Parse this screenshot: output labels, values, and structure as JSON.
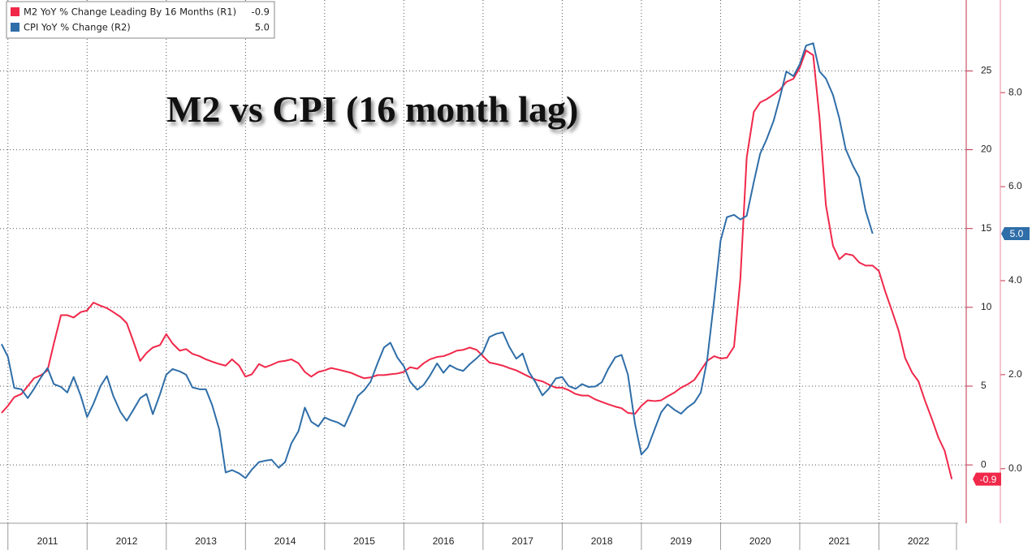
{
  "chart_data": {
    "type": "line",
    "title": "M2 vs CPI (16 month lag)",
    "x": [
      2010.92,
      2011,
      2011.08,
      2011.17,
      2011.25,
      2011.33,
      2011.42,
      2011.5,
      2011.58,
      2011.67,
      2011.75,
      2011.83,
      2011.92,
      2012,
      2012.08,
      2012.17,
      2012.25,
      2012.33,
      2012.42,
      2012.5,
      2012.58,
      2012.67,
      2012.75,
      2012.83,
      2012.92,
      2013,
      2013.08,
      2013.17,
      2013.25,
      2013.33,
      2013.42,
      2013.5,
      2013.58,
      2013.67,
      2013.75,
      2013.83,
      2013.92,
      2014,
      2014.08,
      2014.17,
      2014.25,
      2014.33,
      2014.42,
      2014.5,
      2014.58,
      2014.67,
      2014.75,
      2014.83,
      2014.92,
      2015,
      2015.08,
      2015.17,
      2015.25,
      2015.33,
      2015.42,
      2015.5,
      2015.58,
      2015.67,
      2015.75,
      2015.83,
      2015.92,
      2016,
      2016.08,
      2016.17,
      2016.25,
      2016.33,
      2016.42,
      2016.5,
      2016.58,
      2016.67,
      2016.75,
      2016.83,
      2016.92,
      2017,
      2017.08,
      2017.17,
      2017.25,
      2017.33,
      2017.42,
      2017.5,
      2017.58,
      2017.67,
      2017.75,
      2017.83,
      2017.92,
      2018,
      2018.08,
      2018.17,
      2018.25,
      2018.33,
      2018.42,
      2018.5,
      2018.58,
      2018.67,
      2018.75,
      2018.83,
      2018.92,
      2019,
      2019.08,
      2019.17,
      2019.25,
      2019.33,
      2019.42,
      2019.5,
      2019.58,
      2019.67,
      2019.75,
      2019.83,
      2019.92,
      2020,
      2020.08,
      2020.17,
      2020.25,
      2020.33,
      2020.42,
      2020.5,
      2020.58,
      2020.67,
      2020.75,
      2020.83,
      2020.92,
      2021,
      2021.08,
      2021.17,
      2021.25,
      2021.33,
      2021.42,
      2021.5,
      2021.58,
      2021.67,
      2021.75,
      2021.83,
      2021.92,
      2022,
      2022.08,
      2022.17,
      2022.25,
      2022.33,
      2022.42,
      2022.5,
      2022.58,
      2022.67,
      2022.75,
      2022.83,
      2022.92
    ],
    "series": [
      {
        "name": "M2 YoY % Change Leading By 16 Months (R1)",
        "color": "#f0284a",
        "axis": "y",
        "values": [
          3.3,
          3.75,
          4.3,
          4.5,
          5.0,
          5.5,
          5.7,
          6.0,
          7.7,
          9.5,
          9.5,
          9.35,
          9.7,
          9.8,
          10.3,
          10.1,
          9.95,
          9.7,
          9.4,
          9.0,
          7.9,
          6.6,
          7.1,
          7.45,
          7.6,
          8.3,
          7.7,
          7.25,
          7.35,
          7.05,
          6.9,
          6.7,
          6.55,
          6.4,
          6.3,
          6.7,
          6.3,
          5.6,
          5.75,
          6.4,
          6.2,
          6.35,
          6.55,
          6.6,
          6.7,
          6.45,
          5.9,
          5.6,
          5.9,
          6.0,
          6.15,
          6.05,
          5.95,
          5.85,
          5.65,
          5.5,
          5.55,
          5.7,
          5.7,
          5.75,
          5.8,
          5.9,
          6.2,
          6.1,
          6.45,
          6.7,
          6.85,
          6.9,
          7.05,
          7.25,
          7.3,
          7.45,
          7.3,
          6.9,
          6.5,
          6.4,
          6.3,
          6.15,
          6.0,
          5.8,
          5.6,
          5.4,
          5.3,
          5.1,
          4.9,
          4.9,
          4.75,
          4.5,
          4.4,
          4.4,
          4.15,
          4.0,
          3.85,
          3.7,
          3.6,
          3.3,
          3.25,
          3.75,
          4.1,
          4.05,
          4.1,
          4.35,
          4.6,
          4.9,
          5.1,
          5.4,
          6.0,
          6.6,
          6.9,
          6.75,
          6.8,
          7.5,
          11.8,
          19.5,
          22.4,
          23.0,
          23.2,
          23.5,
          23.8,
          24.3,
          24.5,
          25.2,
          26.3,
          26.0,
          22.0,
          16.5,
          13.9,
          13.05,
          13.4,
          13.3,
          12.85,
          12.65,
          12.65,
          12.3,
          11.0,
          9.7,
          8.5,
          6.8,
          5.85,
          5.3,
          4.1,
          2.9,
          1.75,
          0.9,
          -0.9
        ]
      },
      {
        "name": "CPI YoY % Change (R2)",
        "color": "#2f6ea8",
        "axis": "y2",
        "values": [
          2.65,
          2.38,
          1.72,
          1.69,
          1.5,
          1.7,
          1.95,
          2.14,
          1.8,
          1.74,
          1.62,
          1.95,
          1.55,
          1.1,
          1.38,
          1.76,
          1.97,
          1.55,
          1.21,
          1.02,
          1.24,
          1.5,
          1.59,
          1.16,
          1.58,
          2.0,
          2.12,
          2.07,
          2.0,
          1.73,
          1.69,
          1.69,
          1.35,
          0.83,
          -0.08,
          -0.03,
          -0.1,
          -0.2,
          -0.02,
          0.14,
          0.17,
          0.19,
          0.02,
          0.14,
          0.54,
          0.8,
          1.3,
          1.0,
          0.9,
          1.09,
          1.03,
          0.98,
          0.9,
          1.2,
          1.55,
          1.67,
          1.85,
          2.25,
          2.58,
          2.68,
          2.36,
          2.18,
          1.85,
          1.68,
          1.78,
          1.98,
          2.24,
          2.04,
          2.2,
          2.12,
          2.08,
          2.22,
          2.35,
          2.48,
          2.8,
          2.87,
          2.9,
          2.6,
          2.34,
          2.45,
          2.06,
          1.82,
          1.56,
          1.7,
          1.92,
          1.95,
          1.76,
          1.7,
          1.8,
          1.74,
          1.75,
          1.84,
          2.12,
          2.37,
          2.42,
          2.0,
          0.95,
          0.3,
          0.45,
          0.85,
          1.2,
          1.37,
          1.25,
          1.17,
          1.3,
          1.41,
          1.62,
          2.3,
          3.6,
          4.85,
          5.35,
          5.4,
          5.3,
          5.38,
          6.1,
          6.7,
          7.0,
          7.4,
          7.9,
          8.45,
          8.35,
          8.6,
          9.0,
          9.05,
          8.45,
          8.3,
          7.95,
          7.45,
          6.8,
          6.45,
          6.2,
          5.5,
          5.0,
          null,
          null,
          null,
          null,
          null,
          null,
          null,
          null,
          null,
          null,
          null,
          null
        ],
        "value_labels": [
          null,
          null,
          null,
          null,
          null,
          null,
          null,
          null,
          null,
          null,
          null,
          null,
          null,
          null,
          null,
          null,
          null,
          null,
          null,
          null,
          null,
          null,
          null,
          null,
          null,
          null,
          null,
          null,
          null,
          null,
          null,
          null,
          null,
          null,
          null,
          null,
          null,
          null,
          null,
          null,
          null,
          null,
          null,
          null,
          null,
          null,
          null,
          null,
          null,
          null,
          null,
          null,
          null,
          null,
          null,
          null,
          null,
          null,
          null,
          null,
          null,
          null,
          null,
          null,
          null,
          null,
          null,
          null,
          null,
          null,
          null,
          null,
          null,
          null,
          null,
          null,
          null,
          null,
          null,
          null,
          null,
          null,
          null,
          null,
          null,
          null,
          null,
          null,
          null,
          null,
          null,
          null,
          null,
          null,
          null,
          null,
          null,
          null,
          null,
          null,
          null,
          null,
          null,
          null,
          null,
          null,
          null,
          null,
          null,
          null,
          null,
          null,
          null,
          null,
          null,
          null,
          null,
          null,
          null,
          null,
          null,
          null,
          null,
          null,
          null,
          null,
          null,
          null,
          null,
          null,
          null,
          null,
          "5.0",
          null,
          null,
          null,
          null,
          null,
          null,
          null,
          null,
          null,
          null,
          null,
          null
        ]
      }
    ],
    "xlim": [
      2010.9,
      2023.0
    ],
    "xticks": [
      2011,
      2012,
      2013,
      2014,
      2015,
      2016,
      2017,
      2018,
      2019,
      2020,
      2021,
      2022
    ],
    "ylim": [
      -3.7,
      29.5
    ],
    "yticks": [
      0,
      5,
      10,
      15,
      20,
      25
    ],
    "y2lim": [
      -1.16,
      9.97
    ],
    "y2ticks": [
      {
        "value": 0,
        "label": "0.0"
      },
      {
        "value": 2,
        "label": "2.0"
      },
      {
        "value": 4,
        "label": "4.0"
      },
      {
        "value": 6,
        "label": "6.0"
      },
      {
        "value": 8,
        "label": "8.0"
      }
    ],
    "grid": true,
    "legend": "upper left"
  }
}
